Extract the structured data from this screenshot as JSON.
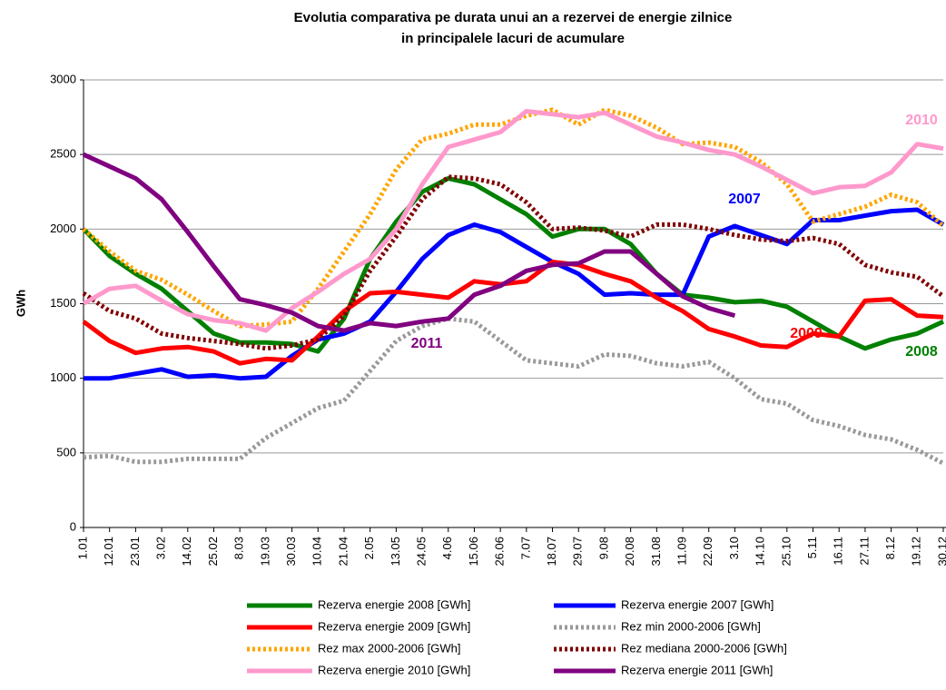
{
  "chart_data": {
    "type": "line",
    "title": "Evolutia comparativa pe durata unui an a rezervei de energie zilnice",
    "subtitle": "in principalele lacuri de acumulare",
    "y_label": "GWh",
    "categories": [
      "1.01",
      "12.01",
      "23.01",
      "3.02",
      "14.02",
      "25.02",
      "8.03",
      "19.03",
      "30.03",
      "10.04",
      "21.04",
      "2.05",
      "13.05",
      "24.05",
      "4.06",
      "15.06",
      "26.06",
      "7.07",
      "18.07",
      "29.07",
      "9.08",
      "20.08",
      "31.08",
      "11.09",
      "22.09",
      "3.10",
      "14.10",
      "25.10",
      "5.11",
      "16.11",
      "27.11",
      "8.12",
      "19.12",
      "30.12"
    ],
    "ylim": [
      0,
      3000
    ],
    "yticks": [
      0,
      500,
      1000,
      1500,
      2000,
      2500,
      3000
    ],
    "grid": true,
    "series": [
      {
        "name": "Rezerva energie 2008 [GWh]",
        "color": "#008000",
        "dashed": false,
        "values": [
          2000,
          1820,
          1700,
          1600,
          1450,
          1300,
          1240,
          1240,
          1230,
          1180,
          1400,
          1800,
          2050,
          2250,
          2340,
          2300,
          2200,
          2100,
          1950,
          2000,
          2000,
          1900,
          1700,
          1560,
          1540,
          1510,
          1520,
          1480,
          1380,
          1280,
          1200,
          1260,
          1300,
          1380
        ]
      },
      {
        "name": "Rezerva energie 2007 [GWh]",
        "color": "#0000ff",
        "dashed": false,
        "values": [
          1000,
          1000,
          1030,
          1060,
          1010,
          1020,
          1000,
          1010,
          1150,
          1260,
          1300,
          1380,
          1580,
          1800,
          1960,
          2030,
          1980,
          1880,
          1780,
          1700,
          1560,
          1570,
          1560,
          1560,
          1950,
          2020,
          1960,
          1900,
          2060,
          2060,
          2090,
          2120,
          2130,
          2030
        ]
      },
      {
        "name": "Rezerva energie 2009 [GWh]",
        "color": "#ff0000",
        "dashed": false,
        "values": [
          1380,
          1250,
          1170,
          1200,
          1210,
          1180,
          1100,
          1130,
          1120,
          1280,
          1450,
          1570,
          1580,
          1560,
          1540,
          1650,
          1630,
          1650,
          1780,
          1760,
          1700,
          1650,
          1540,
          1450,
          1330,
          1280,
          1220,
          1210,
          1300,
          1280,
          1520,
          1530,
          1420,
          1410
        ]
      },
      {
        "name": "Rez min 2000-2006 [GWh]",
        "color": "#999999",
        "dashed": true,
        "values": [
          470,
          480,
          440,
          440,
          460,
          460,
          460,
          600,
          700,
          800,
          850,
          1050,
          1250,
          1350,
          1400,
          1380,
          1250,
          1120,
          1100,
          1080,
          1160,
          1150,
          1100,
          1080,
          1110,
          1000,
          860,
          830,
          720,
          680,
          620,
          590,
          520,
          430
        ]
      },
      {
        "name": "Rez max 2000-2006 [GWh]",
        "color": "#ffa500",
        "dashed": true,
        "values": [
          2000,
          1850,
          1720,
          1660,
          1560,
          1450,
          1350,
          1360,
          1380,
          1600,
          1850,
          2100,
          2400,
          2600,
          2640,
          2700,
          2700,
          2760,
          2800,
          2700,
          2800,
          2760,
          2680,
          2570,
          2580,
          2550,
          2450,
          2300,
          2050,
          2100,
          2150,
          2230,
          2180,
          2020
        ]
      },
      {
        "name": "Rez mediana 2000-2006 [GWh]",
        "color": "#800000",
        "dashed": true,
        "values": [
          1570,
          1450,
          1400,
          1300,
          1270,
          1250,
          1230,
          1200,
          1220,
          1260,
          1420,
          1720,
          1950,
          2200,
          2350,
          2340,
          2300,
          2180,
          2000,
          2010,
          1990,
          1950,
          2030,
          2030,
          2000,
          1960,
          1930,
          1920,
          1940,
          1900,
          1760,
          1710,
          1680,
          1550
        ]
      },
      {
        "name": "Rezerva energie 2010 [GWh]",
        "color": "#ff99cc",
        "dashed": false,
        "values": [
          1500,
          1600,
          1620,
          1520,
          1430,
          1390,
          1370,
          1320,
          1470,
          1580,
          1700,
          1800,
          2000,
          2300,
          2550,
          2600,
          2650,
          2790,
          2770,
          2750,
          2780,
          2700,
          2620,
          2580,
          2530,
          2500,
          2420,
          2330,
          2240,
          2280,
          2290,
          2380,
          2570,
          2540
        ]
      },
      {
        "name": "Rezerva energie 2011 [GWh]",
        "color": "#800080",
        "dashed": false,
        "values": [
          2500,
          2420,
          2340,
          2200,
          1980,
          1750,
          1530,
          1490,
          1440,
          1350,
          1320,
          1370,
          1350,
          1380,
          1400,
          1560,
          1620,
          1720,
          1760,
          1770,
          1850,
          1850,
          1700,
          1550,
          1470,
          1420,
          null,
          null,
          null,
          null,
          null,
          null,
          null,
          null
        ]
      }
    ],
    "annotations": [
      {
        "text": "2010",
        "color": "#ff99cc"
      },
      {
        "text": "2007",
        "color": "#0000ff"
      },
      {
        "text": "2011",
        "color": "#800080"
      },
      {
        "text": "2009",
        "color": "#ff0000"
      },
      {
        "text": "2008",
        "color": "#008000"
      }
    ]
  }
}
